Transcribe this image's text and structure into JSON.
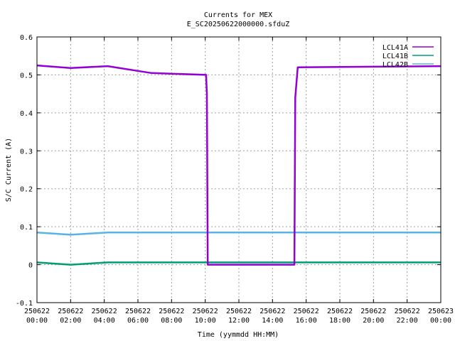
{
  "chart_data": {
    "type": "line",
    "title": "Currents for MEX",
    "subtitle": "E_SC20250622000000.sfduZ",
    "xlabel": "Time (yymmdd HH:MM)",
    "ylabel": "S/C Current (A)",
    "xlim": [
      0,
      24
    ],
    "ylim": [
      -0.1,
      0.6
    ],
    "grid": true,
    "legend_position": "top-right",
    "yticks": [
      "-0.1",
      "0",
      "0.1",
      "0.2",
      "0.3",
      "0.4",
      "0.5",
      "0.6"
    ],
    "xticks": [
      {
        "date": "250622",
        "time": "00:00"
      },
      {
        "date": "250622",
        "time": "02:00"
      },
      {
        "date": "250622",
        "time": "04:00"
      },
      {
        "date": "250622",
        "time": "06:00"
      },
      {
        "date": "250622",
        "time": "08:00"
      },
      {
        "date": "250622",
        "time": "10:00"
      },
      {
        "date": "250622",
        "time": "12:00"
      },
      {
        "date": "250622",
        "time": "14:00"
      },
      {
        "date": "250622",
        "time": "16:00"
      },
      {
        "date": "250622",
        "time": "18:00"
      },
      {
        "date": "250622",
        "time": "20:00"
      },
      {
        "date": "250622",
        "time": "22:00"
      },
      {
        "date": "250623",
        "time": "00:00"
      }
    ],
    "series": [
      {
        "name": "LCL41A",
        "color": "#9400d3",
        "x": [
          0,
          2.0,
          4.2,
          6.8,
          10.05,
          10.1,
          10.15,
          15.3,
          15.35,
          15.5,
          24
        ],
        "y": [
          0.525,
          0.518,
          0.523,
          0.505,
          0.5,
          0.45,
          0.0,
          0.0,
          0.44,
          0.52,
          0.523
        ]
      },
      {
        "name": "LCL41B",
        "color": "#009e73",
        "x": [
          0,
          2.0,
          4.2,
          24
        ],
        "y": [
          0.006,
          0.0,
          0.006,
          0.006
        ]
      },
      {
        "name": "LCL42B",
        "color": "#56b4e9",
        "x": [
          0,
          2.0,
          4.2,
          24
        ],
        "y": [
          0.085,
          0.079,
          0.085,
          0.085
        ]
      }
    ]
  }
}
